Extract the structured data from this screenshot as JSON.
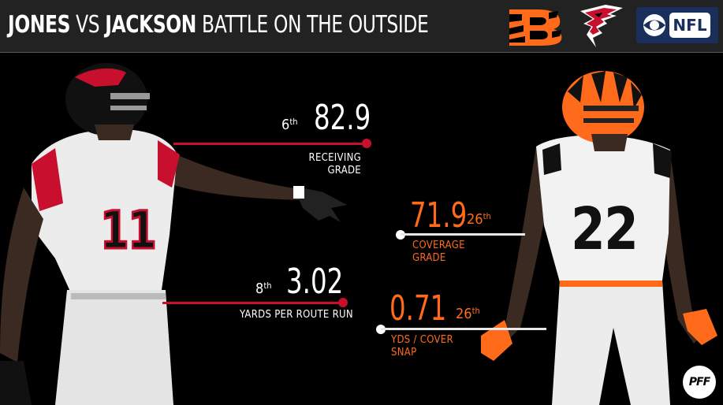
{
  "header": {
    "title_bold_1": "JONES",
    "title_thin_1": " VS ",
    "title_bold_2": "JACKSON",
    "title_thin_2": " BATTLE ON THE OUTSIDE"
  },
  "logos": {
    "cbs_nfl": "NFL",
    "pff": "PFF"
  },
  "colors": {
    "background": "#000000",
    "falcons_red": "#c8102e",
    "bengals_orange": "#ff6b1a",
    "header_bg": "#222222"
  },
  "jones_stats": {
    "receiving_grade": {
      "rank_num": "6",
      "rank_suffix": "th",
      "value": "82.9",
      "label_line1": "RECEIVING",
      "label_line2": "GRADE"
    },
    "yards_per_route_run": {
      "rank_num": "8",
      "rank_suffix": "th",
      "value": "3.02",
      "label": "YARDS PER ROUTE RUN"
    }
  },
  "jackson_stats": {
    "coverage_grade": {
      "rank_num": "26",
      "rank_suffix": "th",
      "value": "71.9",
      "label_line1": "COVERAGE",
      "label_line2": "GRADE"
    },
    "yds_per_cover_snap": {
      "rank_num": "26",
      "rank_suffix": "th",
      "value": "0.71",
      "label_line1": "YDS / COVER",
      "label_line2": "SNAP"
    }
  },
  "jerseys": {
    "jones_number": "11",
    "jackson_number": "22"
  }
}
